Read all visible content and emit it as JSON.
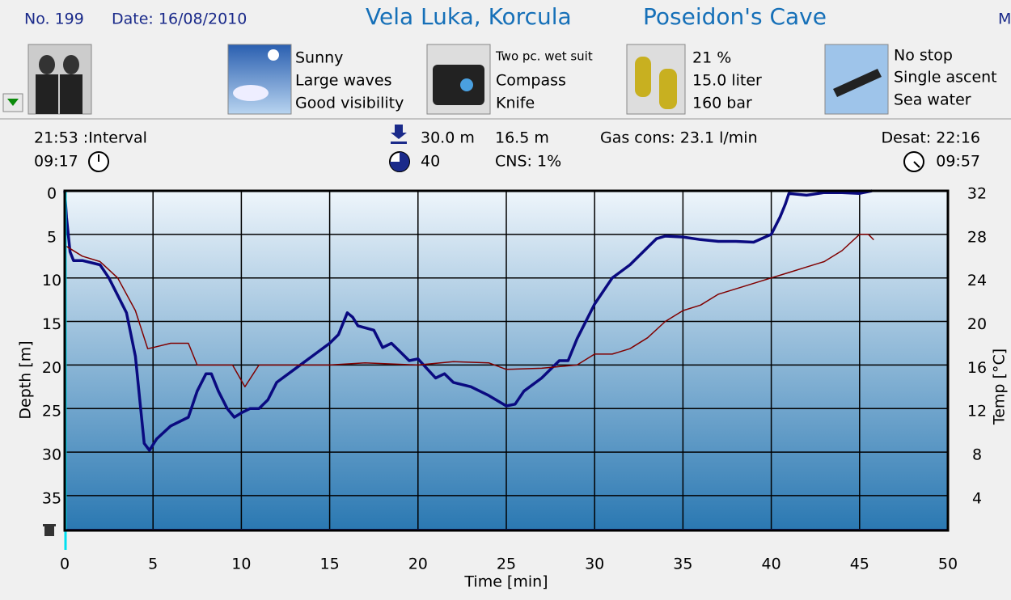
{
  "header": {
    "number": "No. 199",
    "date": "Date: 16/08/2010",
    "location": "Vela Luka, Korcula",
    "site": "Poseidon's Cave",
    "cut": "M"
  },
  "panels": {
    "conditions": [
      "Sunny",
      "Large waves",
      "Good visibility"
    ],
    "equipment": [
      "Two pc. wet suit",
      "Compass",
      "Knife"
    ],
    "gas": [
      "21 %",
      "15.0 liter",
      "160 bar"
    ],
    "dive": [
      "No stop",
      "Single ascent",
      "Sea water"
    ]
  },
  "stats": {
    "interval": "21:53 :Interval",
    "start_time": "09:17",
    "max_depth": "30.0 m",
    "duration": "40",
    "avg_depth": "16.5 m",
    "cns": "CNS:  1%",
    "gas_cons": "Gas cons: 23.1 l/min",
    "desat": "Desat: 22:16",
    "end_time": "09:57"
  },
  "chart_data": {
    "type": "line",
    "xlabel": "Time [min]",
    "ylabel": "Depth [m]",
    "y2label": "Temp [°C]",
    "xlim": [
      0,
      50
    ],
    "xticks": [
      0,
      5,
      10,
      15,
      20,
      25,
      30,
      35,
      40,
      45,
      50
    ],
    "ylim": [
      0,
      39
    ],
    "y_inverted": true,
    "yticks": [
      0,
      5,
      10,
      15,
      20,
      25,
      30,
      35
    ],
    "y2lim": [
      0.8,
      32
    ],
    "y2ticks": [
      4,
      8,
      12,
      16,
      20,
      24,
      28,
      32
    ],
    "grid": true,
    "series": [
      {
        "name": "Depth",
        "color": "#0a0a80",
        "x": [
          0,
          0.1,
          0.3,
          0.5,
          1,
          2,
          2.5,
          3,
          3.5,
          4,
          4.3,
          4.5,
          4.8,
          5.2,
          6,
          7,
          7.5,
          8,
          8.3,
          8.7,
          9.2,
          9.6,
          10,
          10.5,
          11,
          11.5,
          12,
          13,
          14,
          15,
          15.5,
          16,
          16.3,
          16.6,
          17.5,
          18,
          18.5,
          19,
          19.5,
          20,
          21,
          21.5,
          22,
          23,
          24,
          25,
          25.5,
          26,
          27,
          28,
          28.5,
          29,
          30,
          31,
          32,
          33,
          33.5,
          34,
          35,
          36,
          37,
          38,
          39,
          40,
          40.5,
          40.8,
          41,
          42,
          43,
          44,
          45,
          45.7
        ],
        "values": [
          0,
          3,
          7,
          8,
          8,
          8.5,
          10,
          12,
          14,
          19,
          25,
          29,
          29.8,
          28.5,
          27,
          26,
          23,
          21,
          21,
          23,
          25,
          26,
          25.5,
          25,
          25,
          24,
          22,
          20.5,
          19,
          17.5,
          16.5,
          14,
          14.5,
          15.5,
          16,
          18,
          17.5,
          18.5,
          19.5,
          19.3,
          21.5,
          21,
          22,
          22.5,
          23.5,
          24.7,
          24.5,
          23,
          21.5,
          19.5,
          19.5,
          17,
          13,
          10,
          8.5,
          6.5,
          5.5,
          5.2,
          5.3,
          5.6,
          5.8,
          5.8,
          5.9,
          5,
          3,
          1.5,
          0.3,
          0.5,
          0.2,
          0.2,
          0.3,
          0
        ]
      },
      {
        "name": "Temp",
        "color": "#800000",
        "axis": "y2",
        "x": [
          0,
          1,
          2,
          3,
          4,
          4.7,
          5,
          6,
          7,
          7.5,
          9.5,
          10.2,
          11,
          13,
          15,
          17,
          20,
          22,
          24,
          25,
          27,
          29,
          30,
          31,
          32,
          33,
          34,
          35,
          36,
          37,
          38,
          40,
          41,
          42,
          43,
          44,
          45,
          45.5,
          45.8
        ],
        "values": [
          27,
          26,
          25.5,
          24,
          21,
          17.5,
          17.6,
          18,
          18,
          16,
          16,
          14,
          16,
          16,
          16,
          16.2,
          16,
          16.3,
          16.2,
          15.6,
          15.7,
          16,
          17,
          17,
          17.5,
          18.5,
          20,
          21,
          21.5,
          22.5,
          23,
          24,
          24.5,
          25,
          25.5,
          26.5,
          28,
          28,
          27.5
        ]
      }
    ]
  }
}
